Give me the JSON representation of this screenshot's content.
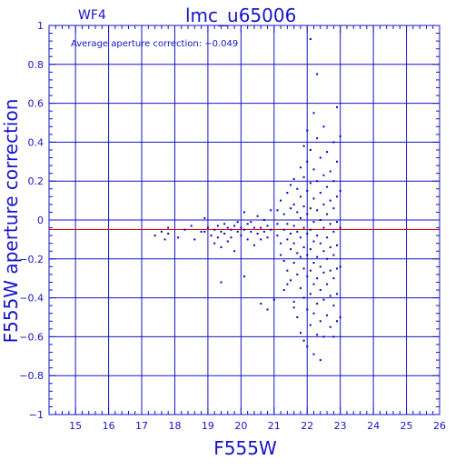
{
  "chart_data": {
    "type": "scatter",
    "title": "lmc_u65006",
    "corner_label": "WF4",
    "annotation": "Average aperture correction:  −0.049",
    "xlabel": "F555W",
    "ylabel": "F555W aperture correction",
    "xlim": [
      14.2,
      26
    ],
    "ylim": [
      -1,
      1
    ],
    "x_tick_values": [
      15,
      16,
      17,
      18,
      19,
      20,
      21,
      22,
      23,
      24,
      25,
      26
    ],
    "x_tick_labels": [
      "15",
      "16",
      "17",
      "18",
      "19",
      "20",
      "21",
      "22",
      "23",
      "24",
      "25",
      "26"
    ],
    "y_tick_values": [
      -1,
      -0.8,
      -0.6,
      -0.4,
      -0.2,
      0,
      0.2,
      0.4,
      0.6,
      0.8,
      1
    ],
    "y_tick_labels": [
      "−1",
      "−0.8",
      "−0.6",
      "−0.4",
      "−0.2",
      "0",
      "0.2",
      "0.4",
      "0.6",
      "0.8",
      "1"
    ],
    "grid": true,
    "reference_lines": [
      {
        "name": "average aperture correction",
        "y": -0.049,
        "color": "#dd0000"
      }
    ],
    "colors": {
      "axes": "#1515c8",
      "points": "#0000cc",
      "average_line": "#dd0000",
      "background": "#ffffff"
    },
    "series": [
      {
        "points": [
          [
            17.4,
            -0.08
          ],
          [
            17.6,
            -0.06
          ],
          [
            17.7,
            -0.1
          ],
          [
            17.8,
            -0.07
          ],
          [
            17.8,
            -0.04
          ],
          [
            18.1,
            -0.09
          ],
          [
            18.3,
            -0.05
          ],
          [
            18.5,
            -0.03
          ],
          [
            18.6,
            -0.1
          ],
          [
            18.8,
            -0.06
          ],
          [
            18.9,
            0.01
          ],
          [
            18.9,
            -0.06
          ],
          [
            19.0,
            -0.04
          ],
          [
            19.1,
            -0.08
          ],
          [
            19.2,
            -0.05
          ],
          [
            19.2,
            -0.12
          ],
          [
            19.3,
            -0.03
          ],
          [
            19.3,
            -0.09
          ],
          [
            19.4,
            -0.06
          ],
          [
            19.4,
            -0.14
          ],
          [
            19.5,
            -0.02
          ],
          [
            19.5,
            -0.07
          ],
          [
            19.6,
            -0.04
          ],
          [
            19.6,
            -0.11
          ],
          [
            19.7,
            -0.05
          ],
          [
            19.7,
            -0.09
          ],
          [
            19.8,
            -0.03
          ],
          [
            19.8,
            -0.16
          ],
          [
            19.9,
            -0.06
          ],
          [
            19.9,
            -0.01
          ],
          [
            20.0,
            -0.04
          ],
          [
            20.0,
            -0.08
          ],
          [
            20.1,
            -0.05
          ],
          [
            20.1,
            0.04
          ],
          [
            20.2,
            -0.02
          ],
          [
            20.2,
            -0.1
          ],
          [
            20.3,
            -0.06
          ],
          [
            20.3,
            -0.01
          ],
          [
            20.4,
            -0.04
          ],
          [
            20.4,
            -0.13
          ],
          [
            20.5,
            0.02
          ],
          [
            20.5,
            -0.07
          ],
          [
            20.6,
            -0.04
          ],
          [
            20.6,
            -0.1
          ],
          [
            20.7,
            0.0
          ],
          [
            20.7,
            -0.06
          ],
          [
            20.8,
            -0.03
          ],
          [
            20.8,
            -0.09
          ],
          [
            20.9,
            0.05
          ],
          [
            20.9,
            -0.05
          ],
          [
            19.4,
            -0.32
          ],
          [
            20.1,
            -0.29
          ],
          [
            20.6,
            -0.43
          ],
          [
            20.8,
            -0.46
          ],
          [
            21.0,
            -0.41
          ],
          [
            21.1,
            0.05
          ],
          [
            21.1,
            -0.02
          ],
          [
            21.1,
            -0.08
          ],
          [
            21.2,
            -0.12
          ],
          [
            21.2,
            0.1
          ],
          [
            21.2,
            -0.18
          ],
          [
            21.3,
            0.03
          ],
          [
            21.3,
            -0.05
          ],
          [
            21.3,
            -0.21
          ],
          [
            21.3,
            -0.36
          ],
          [
            21.4,
            0.14
          ],
          [
            21.4,
            -0.02
          ],
          [
            21.4,
            -0.1
          ],
          [
            21.4,
            -0.26
          ],
          [
            21.5,
            0.18
          ],
          [
            21.5,
            0.06
          ],
          [
            21.5,
            -0.07
          ],
          [
            21.5,
            -0.15
          ],
          [
            21.5,
            -0.31
          ],
          [
            21.6,
            0.21
          ],
          [
            21.6,
            0.08
          ],
          [
            21.6,
            -0.03
          ],
          [
            21.6,
            -0.12
          ],
          [
            21.6,
            -0.22
          ],
          [
            21.6,
            -0.45
          ],
          [
            21.7,
            0.16
          ],
          [
            21.7,
            0.04
          ],
          [
            21.7,
            -0.06
          ],
          [
            21.7,
            -0.17
          ],
          [
            21.7,
            -0.28
          ],
          [
            21.7,
            -0.5
          ],
          [
            21.8,
            0.27
          ],
          [
            21.8,
            0.12
          ],
          [
            21.8,
            0.01
          ],
          [
            21.8,
            -0.09
          ],
          [
            21.8,
            -0.19
          ],
          [
            21.8,
            -0.35
          ],
          [
            21.8,
            -0.58
          ],
          [
            21.9,
            0.38
          ],
          [
            21.9,
            0.22
          ],
          [
            21.9,
            0.07
          ],
          [
            21.9,
            -0.04
          ],
          [
            21.9,
            -0.14
          ],
          [
            21.9,
            -0.25
          ],
          [
            21.9,
            -0.4
          ],
          [
            21.9,
            -0.62
          ],
          [
            22.0,
            0.46
          ],
          [
            22.0,
            0.3
          ],
          [
            22.0,
            0.15
          ],
          [
            22.0,
            0.03
          ],
          [
            22.0,
            -0.07
          ],
          [
            22.0,
            -0.18
          ],
          [
            22.0,
            -0.29
          ],
          [
            22.0,
            -0.46
          ],
          [
            22.0,
            -0.65
          ],
          [
            22.1,
            0.93
          ],
          [
            22.1,
            0.36
          ],
          [
            22.1,
            0.19
          ],
          [
            22.1,
            0.06
          ],
          [
            22.1,
            -0.05
          ],
          [
            22.1,
            -0.15
          ],
          [
            22.1,
            -0.26
          ],
          [
            22.1,
            -0.38
          ],
          [
            22.1,
            -0.54
          ],
          [
            22.2,
            0.55
          ],
          [
            22.2,
            0.26
          ],
          [
            22.2,
            0.11
          ],
          [
            22.2,
            -0.01
          ],
          [
            22.2,
            -0.11
          ],
          [
            22.2,
            -0.22
          ],
          [
            22.2,
            -0.33
          ],
          [
            22.2,
            -0.48
          ],
          [
            22.2,
            -0.69
          ],
          [
            22.3,
            0.75
          ],
          [
            22.3,
            0.42
          ],
          [
            22.3,
            0.2
          ],
          [
            22.3,
            0.05
          ],
          [
            22.3,
            -0.08
          ],
          [
            22.3,
            -0.19
          ],
          [
            22.3,
            -0.3
          ],
          [
            22.3,
            -0.43
          ],
          [
            22.3,
            -0.59
          ],
          [
            22.4,
            0.32
          ],
          [
            22.4,
            0.14
          ],
          [
            22.4,
            0.0
          ],
          [
            22.4,
            -0.12
          ],
          [
            22.4,
            -0.24
          ],
          [
            22.4,
            -0.36
          ],
          [
            22.4,
            -0.52
          ],
          [
            22.4,
            -0.72
          ],
          [
            22.5,
            0.48
          ],
          [
            22.5,
            0.23
          ],
          [
            22.5,
            0.08
          ],
          [
            22.5,
            -0.04
          ],
          [
            22.5,
            -0.16
          ],
          [
            22.5,
            -0.27
          ],
          [
            22.5,
            -0.41
          ],
          [
            22.5,
            -0.6
          ],
          [
            22.6,
            0.35
          ],
          [
            22.6,
            0.17
          ],
          [
            22.6,
            0.03
          ],
          [
            22.6,
            -0.09
          ],
          [
            22.6,
            -0.2
          ],
          [
            22.6,
            -0.33
          ],
          [
            22.6,
            -0.49
          ],
          [
            22.7,
            0.25
          ],
          [
            22.7,
            0.1
          ],
          [
            22.7,
            -0.02
          ],
          [
            22.7,
            -0.14
          ],
          [
            22.7,
            -0.26
          ],
          [
            22.7,
            -0.39
          ],
          [
            22.7,
            -0.55
          ],
          [
            22.8,
            0.4
          ],
          [
            22.8,
            0.2
          ],
          [
            22.8,
            0.06
          ],
          [
            22.8,
            -0.06
          ],
          [
            22.8,
            -0.18
          ],
          [
            22.8,
            -0.3
          ],
          [
            22.8,
            -0.44
          ],
          [
            22.8,
            -0.6
          ],
          [
            22.9,
            0.3
          ],
          [
            22.9,
            0.12
          ],
          [
            22.9,
            -0.01
          ],
          [
            22.9,
            -0.13
          ],
          [
            22.9,
            -0.25
          ],
          [
            22.9,
            -0.38
          ],
          [
            22.9,
            -0.52
          ],
          [
            23.0,
            0.15
          ],
          [
            23.0,
            -0.04
          ],
          [
            23.0,
            -0.24
          ],
          [
            23.0,
            0.43
          ],
          [
            22.9,
            0.58
          ],
          [
            23.0,
            -0.5
          ],
          [
            21.6,
            -0.42
          ],
          [
            21.4,
            -0.33
          ]
        ]
      }
    ]
  }
}
